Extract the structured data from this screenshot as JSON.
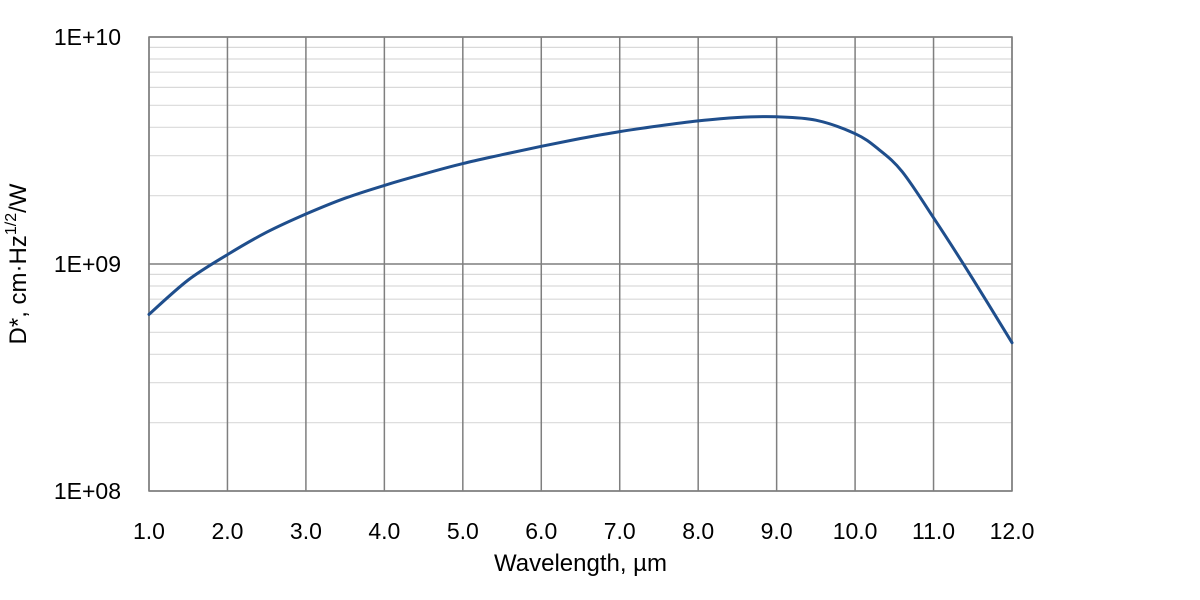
{
  "chart_data": {
    "type": "line",
    "xlabel": "Wavelength, µm",
    "ylabel": {
      "prefix": "D*, cm·Hz",
      "superscript": "1/2",
      "suffix": "/W"
    },
    "xscale": "linear",
    "yscale": "log",
    "xlim": [
      1.0,
      12.0
    ],
    "ylim": [
      100000000,
      10000000000
    ],
    "x_ticks": [
      1,
      2,
      3,
      4,
      5,
      6,
      7,
      8,
      9,
      10,
      11,
      12
    ],
    "x_tick_labels": [
      "1.0",
      "2.0",
      "3.0",
      "4.0",
      "5.0",
      "6.0",
      "7.0",
      "8.0",
      "9.0",
      "10.0",
      "11.0",
      "12.0"
    ],
    "y_ticks": [
      100000000,
      1000000000,
      10000000000
    ],
    "y_tick_labels": [
      "1E+08",
      "1E+09",
      "1E+10"
    ],
    "grid": true,
    "line_color": "#1f4e8c",
    "series": [
      {
        "x": [
          1.0,
          1.5,
          2.0,
          2.5,
          3.0,
          3.5,
          4.0,
          4.5,
          5.0,
          5.5,
          6.0,
          6.5,
          7.0,
          7.5,
          8.0,
          8.5,
          9.0,
          9.5,
          10.0,
          10.3,
          10.6,
          11.0,
          11.5,
          12.0
        ],
        "y": [
          600000000,
          850000000,
          1100000000,
          1380000000,
          1660000000,
          1950000000,
          2220000000,
          2490000000,
          2770000000,
          3030000000,
          3300000000,
          3570000000,
          3830000000,
          4060000000,
          4270000000,
          4420000000,
          4450000000,
          4300000000,
          3750000000,
          3200000000,
          2550000000,
          1600000000,
          860000000,
          450000000
        ]
      }
    ]
  }
}
